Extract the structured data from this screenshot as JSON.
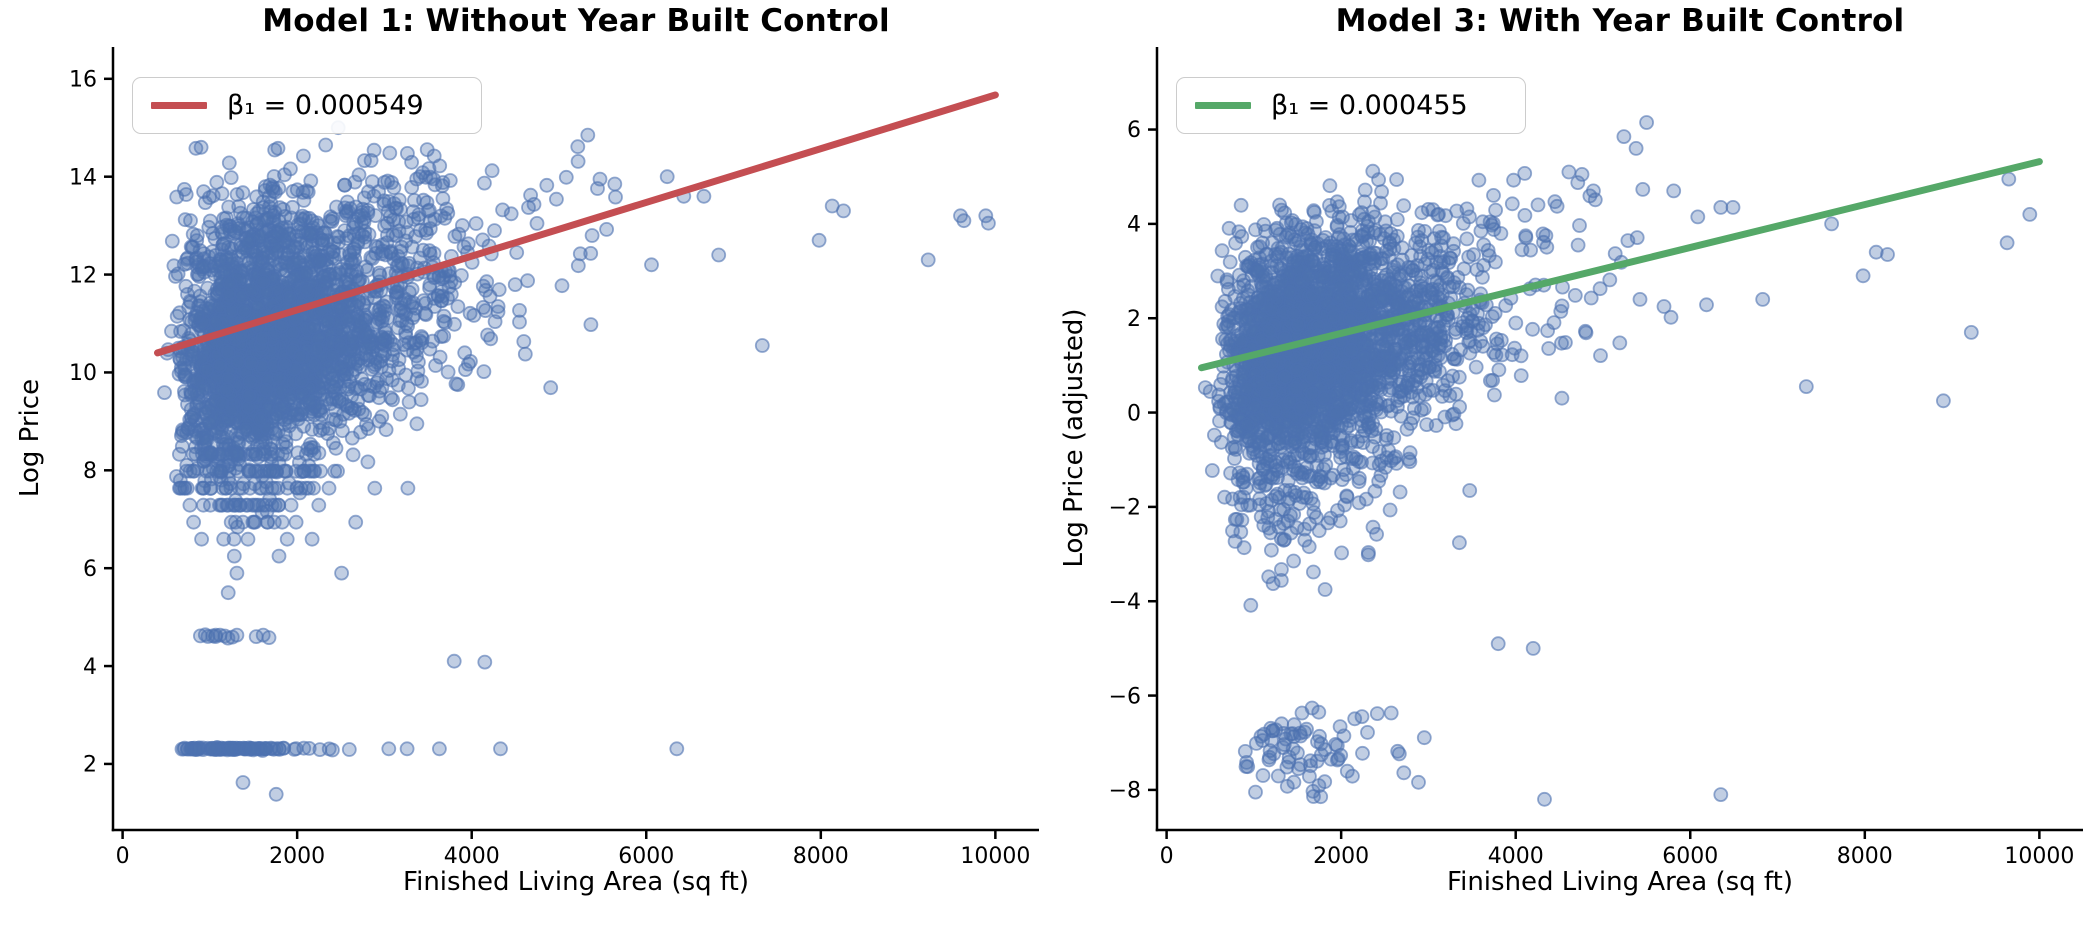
{
  "figure": {
    "background": "#ffffff",
    "point_color": "#4C72B0"
  },
  "chart_data": [
    {
      "type": "scatter",
      "title": "Model 1: Without Year Built Control",
      "xlabel": "Finished Living Area (sq ft)",
      "ylabel": "Log Price",
      "xlim": [
        -110,
        10500
      ],
      "ylim": [
        0.65,
        16.65
      ],
      "xticks": {
        "values": [
          0,
          2000,
          4000,
          6000,
          8000,
          10000
        ],
        "labels": [
          "0",
          "2000",
          "4000",
          "6000",
          "8000",
          "10000"
        ]
      },
      "yticks": {
        "values": [
          2,
          4,
          6,
          8,
          10,
          12,
          14,
          16
        ],
        "labels": [
          "2",
          "4",
          "6",
          "8",
          "10",
          "12",
          "14",
          "16"
        ]
      },
      "grid": false,
      "legend": {
        "label": "β₁ = 0.000549",
        "color": "#C44E52",
        "position": "upper left"
      },
      "regression": {
        "slope": 0.000549,
        "intercept": 10.18,
        "x_start": 400,
        "x_end": 10000,
        "y_start": 10.4,
        "y_end": 15.67,
        "color": "#C44E52"
      },
      "scatter": {
        "marker_color": "#4C72B0",
        "fill_alpha": 0.35,
        "edge_alpha": 0.6,
        "seed": 42,
        "clusters": [
          {
            "n": 2600,
            "x": {
              "type": "lognormal",
              "mu": 7.45,
              "sigma": 0.4,
              "min": 380,
              "max": 6200
            },
            "y": {
              "type": "linear",
              "base": 9.6,
              "slope": 0.00052,
              "noise": 1.05,
              "min": 6.05,
              "max": 14.55
            }
          },
          {
            "n": 340,
            "x": {
              "type": "lognormal",
              "mu": 7.52,
              "sigma": 0.44,
              "min": 520,
              "max": 5650
            },
            "y": {
              "type": "linear",
              "base": 12.05,
              "slope": 0.0004,
              "noise": 0.75,
              "min": 9.5,
              "max": 14.65
            }
          },
          {
            "n": 150,
            "x": {
              "type": "lognormal",
              "mu": 7.25,
              "sigma": 0.36,
              "min": 620,
              "max": 3700
            },
            "y": {
              "type": "linear",
              "base": 8.35,
              "slope": 0,
              "noise": 0.9,
              "half": "down",
              "min": 5.85,
              "max": 8.35,
              "quantize": 0.347
            }
          },
          {
            "n": 14,
            "x": {
              "type": "uniform",
              "min": 640,
              "max": 1900
            },
            "y": {
              "type": "const",
              "value": 4.61,
              "noise": 0.02
            }
          },
          {
            "n": 95,
            "x": {
              "type": "lognormal",
              "mu": 7.1,
              "sigma": 0.3,
              "min": 680,
              "max": 2950
            },
            "y": {
              "type": "const",
              "value": 2.31,
              "noise": 0.012
            }
          }
        ],
        "extra_points": [
          [
            3050,
            2.31
          ],
          [
            3260,
            2.31
          ],
          [
            3630,
            2.31
          ],
          [
            4330,
            2.31
          ],
          [
            6350,
            2.31
          ],
          [
            3800,
            4.1
          ],
          [
            1380,
            1.62
          ],
          [
            1760,
            1.38
          ],
          [
            1210,
            5.5
          ],
          [
            1310,
            5.9
          ],
          [
            2470,
            15.0
          ],
          [
            840,
            14.58
          ],
          [
            900,
            14.6
          ],
          [
            1780,
            14.58
          ],
          [
            5330,
            14.85
          ],
          [
            5470,
            13.95
          ],
          [
            5640,
            13.85
          ],
          [
            6240,
            14.0
          ],
          [
            6430,
            13.6
          ],
          [
            6660,
            13.6
          ],
          [
            8130,
            13.4
          ],
          [
            8260,
            13.3
          ],
          [
            9600,
            13.2
          ],
          [
            9640,
            13.1
          ],
          [
            9890,
            13.2
          ],
          [
            9920,
            13.05
          ],
          [
            7980,
            12.7
          ],
          [
            9230,
            12.3
          ],
          [
            6830,
            12.4
          ],
          [
            7330,
            10.55
          ],
          [
            6060,
            12.2
          ],
          [
            4150,
            4.08
          ]
        ]
      }
    },
    {
      "type": "scatter",
      "title": "Model 3: With Year Built Control",
      "xlabel": "Finished Living Area (sq ft)",
      "ylabel": "Log Price (adjusted)",
      "xlim": [
        -110,
        10500
      ],
      "ylim": [
        -8.85,
        7.75
      ],
      "xticks": {
        "values": [
          0,
          2000,
          4000,
          6000,
          8000,
          10000
        ],
        "labels": [
          "0",
          "2000",
          "4000",
          "6000",
          "8000",
          "10000"
        ]
      },
      "yticks": {
        "values": [
          -8,
          -6,
          -4,
          -2,
          0,
          2,
          4,
          6
        ],
        "labels": [
          "−8",
          "−6",
          "−4",
          "−2",
          "0",
          "2",
          "4",
          "6"
        ]
      },
      "grid": false,
      "legend": {
        "label": "β₁ = 0.000455",
        "color": "#55A868",
        "position": "upper left"
      },
      "regression": {
        "slope": 0.000455,
        "intercept": 0.77,
        "x_start": 400,
        "x_end": 10000,
        "y_start": 0.95,
        "y_end": 5.32,
        "color": "#55A868"
      },
      "scatter": {
        "marker_color": "#4C72B0",
        "fill_alpha": 0.35,
        "edge_alpha": 0.6,
        "seed": 1337,
        "clusters": [
          {
            "n": 2600,
            "x": {
              "type": "lognormal",
              "mu": 7.45,
              "sigma": 0.4,
              "min": 380,
              "max": 6200
            },
            "y": {
              "type": "linear",
              "base": 0.45,
              "slope": 0.00044,
              "noise": 1.0,
              "min": -2.7,
              "max": 5.1
            }
          },
          {
            "n": 340,
            "x": {
              "type": "lognormal",
              "mu": 7.52,
              "sigma": 0.44,
              "min": 520,
              "max": 5650
            },
            "y": {
              "type": "linear",
              "base": 2.45,
              "slope": 0.00035,
              "noise": 0.7,
              "min": 0.2,
              "max": 6.0
            }
          },
          {
            "n": 145,
            "x": {
              "type": "lognormal",
              "mu": 7.25,
              "sigma": 0.36,
              "min": 620,
              "max": 3700
            },
            "y": {
              "type": "linear",
              "base": -0.9,
              "slope": 0,
              "noise": 1.15,
              "half": "down",
              "min": -5.2,
              "max": -0.9
            }
          },
          {
            "n": 80,
            "x": {
              "type": "lognormal",
              "mu": 7.33,
              "sigma": 0.27,
              "min": 850,
              "max": 3150
            },
            "y": {
              "type": "const",
              "value": -7.1,
              "noise": 0.5,
              "min": -8.25,
              "max": -6.2
            }
          }
        ],
        "extra_points": [
          [
            4330,
            -8.2
          ],
          [
            6350,
            -8.1
          ],
          [
            4200,
            -5.0
          ],
          [
            3800,
            -4.9
          ],
          [
            5240,
            5.85
          ],
          [
            5380,
            5.6
          ],
          [
            4610,
            5.1
          ],
          [
            4760,
            5.05
          ],
          [
            4890,
            4.7
          ],
          [
            5810,
            4.7
          ],
          [
            6350,
            4.35
          ],
          [
            6490,
            4.35
          ],
          [
            7620,
            4.0
          ],
          [
            8130,
            3.4
          ],
          [
            8260,
            3.35
          ],
          [
            9650,
            4.95
          ],
          [
            9630,
            3.6
          ],
          [
            9220,
            1.7
          ],
          [
            8900,
            0.25
          ],
          [
            7980,
            2.9
          ],
          [
            6830,
            2.4
          ],
          [
            7330,
            0.55
          ],
          [
            9890,
            4.2
          ],
          [
            5500,
            6.15
          ]
        ]
      }
    }
  ]
}
